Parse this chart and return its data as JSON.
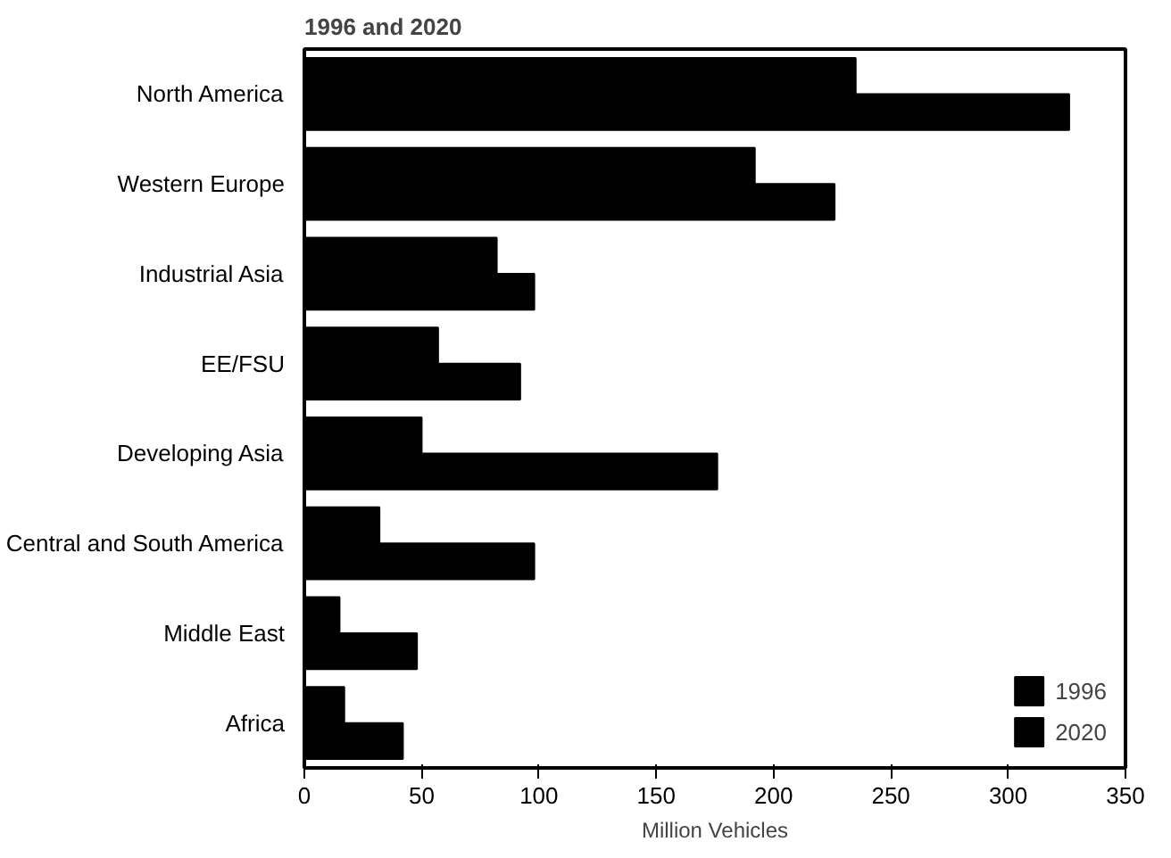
{
  "chart_data": {
    "type": "bar",
    "orientation": "horizontal",
    "title": "1996 and 2020",
    "xlabel": "Million Vehicles",
    "categories": [
      "North America",
      "Western Europe",
      "Industrial Asia",
      "EE/FSU",
      "Developing Asia",
      "Central and South America",
      "Middle East",
      "Africa"
    ],
    "series": [
      {
        "name": "1996",
        "color": "#000000",
        "values": [
          235,
          192,
          82,
          57,
          50,
          32,
          15,
          17
        ]
      },
      {
        "name": "2020",
        "color": "#000000",
        "values": [
          326,
          226,
          98,
          92,
          176,
          98,
          48,
          42
        ]
      }
    ],
    "xlim": [
      0,
      350
    ],
    "xticks": [
      0,
      50,
      100,
      150,
      200,
      250,
      300,
      350
    ],
    "grid": false,
    "legend": "bottom right"
  }
}
